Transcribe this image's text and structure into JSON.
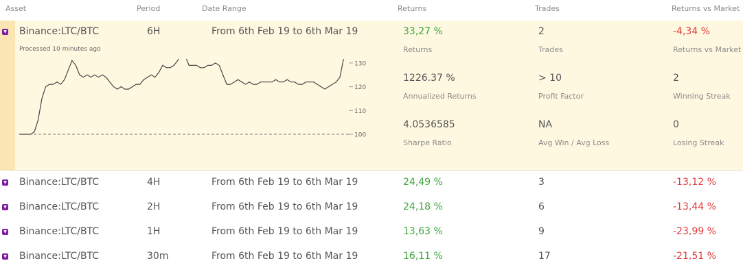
{
  "header": {
    "asset": "Asset",
    "period": "Period",
    "date_range": "Date Range",
    "returns": "Returns",
    "trades": "Trades",
    "returns_vs_market": "Returns vs Market"
  },
  "expanded": {
    "asset": "Binance:LTC/BTC",
    "processed": "Processed 10 minutes ago",
    "period": "6H",
    "date_range": "From 6th Feb 19 to 6th Mar 19",
    "metrics": [
      {
        "value": "33,27 %",
        "label": "Returns",
        "tone": "positive"
      },
      {
        "value": "2",
        "label": "Trades",
        "tone": "neutral"
      },
      {
        "value": "-4,34 %",
        "label": "Returns vs Market",
        "tone": "negative"
      },
      {
        "value": "1226.37 %",
        "label": "Annualized Returns",
        "tone": "neutral"
      },
      {
        "value": "> 10",
        "label": "Profit Factor",
        "tone": "neutral"
      },
      {
        "value": "2",
        "label": "Winning Streak",
        "tone": "neutral"
      },
      {
        "value": "4.0536585",
        "label": "Sharpe Ratio",
        "tone": "neutral"
      },
      {
        "value": "NA",
        "label": "Avg Win / Avg Loss",
        "tone": "neutral"
      },
      {
        "value": "0",
        "label": "Losing Streak",
        "tone": "neutral"
      }
    ]
  },
  "rows": [
    {
      "asset": "Binance:LTC/BTC",
      "period": "4H",
      "date_range": "From 6th Feb 19 to 6th Mar 19",
      "returns": "24,49 %",
      "trades": "3",
      "vs_market": "-13,12 %"
    },
    {
      "asset": "Binance:LTC/BTC",
      "period": "2H",
      "date_range": "From 6th Feb 19 to 6th Mar 19",
      "returns": "24,18 %",
      "trades": "6",
      "vs_market": "-13,44 %"
    },
    {
      "asset": "Binance:LTC/BTC",
      "period": "1H",
      "date_range": "From 6th Feb 19 to 6th Mar 19",
      "returns": "13,63 %",
      "trades": "9",
      "vs_market": "-23,99 %"
    },
    {
      "asset": "Binance:LTC/BTC",
      "period": "30m",
      "date_range": "From 6th Feb 19 to 6th Mar 19",
      "returns": "16,11 %",
      "trades": "17",
      "vs_market": "-21,51 %"
    }
  ],
  "colors": {
    "positive": "#3ea53e",
    "negative": "#e03a3a",
    "accent": "#7b1fa2",
    "highlight": "#fff8e1"
  },
  "chart_data": {
    "type": "line",
    "yticks": [
      "130",
      "120",
      "110",
      "100"
    ],
    "ylim": [
      95,
      135
    ],
    "baseline": 100,
    "values": [
      100,
      100,
      100,
      100,
      101,
      106,
      115,
      120,
      121,
      121,
      122,
      121,
      123,
      127,
      131,
      129,
      125,
      124,
      125,
      124,
      125,
      124,
      125,
      124,
      122,
      120,
      119,
      120,
      119,
      119,
      120,
      121,
      121,
      123,
      124,
      125,
      124,
      126,
      129,
      128,
      128,
      129,
      131,
      134,
      133,
      129,
      129,
      129,
      128,
      128,
      129,
      129,
      130,
      129,
      125,
      121,
      121,
      122,
      123,
      122,
      121,
      122,
      121,
      121,
      122,
      122,
      122,
      122,
      123,
      122,
      122,
      123,
      122,
      122,
      121,
      121,
      122,
      122,
      122,
      121,
      120,
      119,
      120,
      121,
      122,
      124,
      132,
      133
    ]
  }
}
